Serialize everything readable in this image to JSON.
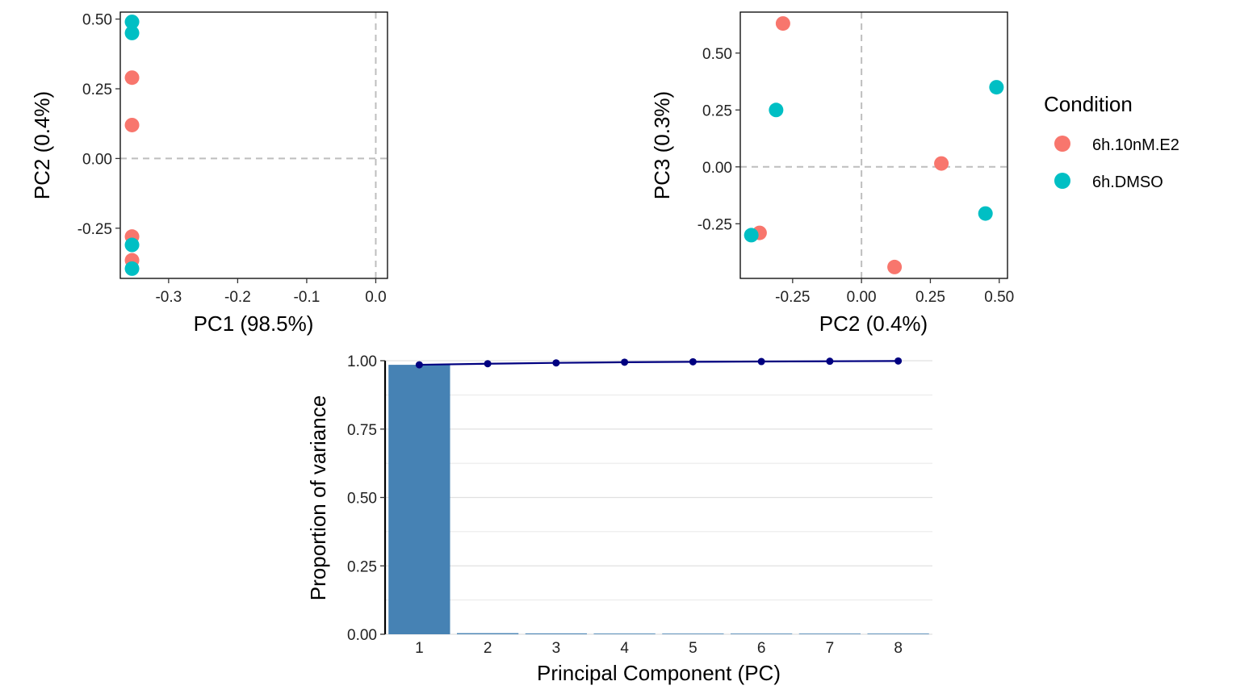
{
  "chart_data": [
    {
      "type": "scatter",
      "xlabel": "PC1 (98.5%)",
      "ylabel": "PC2 (0.4%)",
      "xlim": [
        -0.37,
        0.017
      ],
      "ylim": [
        -0.43,
        0.525
      ],
      "xticks": [
        -0.3,
        -0.2,
        -0.1,
        0.0
      ],
      "xtick_labels": [
        "-0.3",
        "-0.2",
        "-0.1",
        "0.0"
      ],
      "yticks": [
        -0.25,
        0.0,
        0.25,
        0.5
      ],
      "ytick_labels": [
        "-0.25",
        "0.00",
        "0.25",
        "0.50"
      ],
      "ref_lines": {
        "x": 0,
        "y": 0
      },
      "points": [
        {
          "x": -0.353,
          "y": 0.49,
          "group": "6h.DMSO"
        },
        {
          "x": -0.353,
          "y": 0.45,
          "group": "6h.DMSO"
        },
        {
          "x": -0.353,
          "y": 0.29,
          "group": "6h.10nM.E2"
        },
        {
          "x": -0.353,
          "y": 0.12,
          "group": "6h.10nM.E2"
        },
        {
          "x": -0.353,
          "y": -0.28,
          "group": "6h.10nM.E2"
        },
        {
          "x": -0.353,
          "y": -0.31,
          "group": "6h.DMSO"
        },
        {
          "x": -0.353,
          "y": -0.365,
          "group": "6h.10nM.E2"
        },
        {
          "x": -0.353,
          "y": -0.395,
          "group": "6h.DMSO"
        }
      ]
    },
    {
      "type": "scatter",
      "xlabel": "PC2 (0.4%)",
      "ylabel": "PC3 (0.3%)",
      "xlim": [
        -0.44,
        0.53
      ],
      "ylim": [
        -0.49,
        0.68
      ],
      "xticks": [
        -0.25,
        0.0,
        0.25,
        0.5
      ],
      "xtick_labels": [
        "-0.25",
        "0.00",
        "0.25",
        "0.50"
      ],
      "yticks": [
        -0.25,
        0.0,
        0.25,
        0.5
      ],
      "ytick_labels": [
        "-0.25",
        "0.00",
        "0.25",
        "0.50"
      ],
      "ref_lines": {
        "x": 0,
        "y": 0
      },
      "points": [
        {
          "x": -0.285,
          "y": 0.63,
          "group": "6h.10nM.E2"
        },
        {
          "x": 0.49,
          "y": 0.35,
          "group": "6h.DMSO"
        },
        {
          "x": -0.31,
          "y": 0.25,
          "group": "6h.DMSO"
        },
        {
          "x": 0.29,
          "y": 0.015,
          "group": "6h.10nM.E2"
        },
        {
          "x": 0.45,
          "y": -0.205,
          "group": "6h.DMSO"
        },
        {
          "x": -0.37,
          "y": -0.29,
          "group": "6h.10nM.E2"
        },
        {
          "x": -0.4,
          "y": -0.3,
          "group": "6h.DMSO"
        },
        {
          "x": 0.12,
          "y": -0.44,
          "group": "6h.10nM.E2"
        }
      ]
    },
    {
      "type": "bar",
      "xlabel": "Principal Component (PC)",
      "ylabel": "Proportion of variance",
      "categories": [
        "1",
        "2",
        "3",
        "4",
        "5",
        "6",
        "7",
        "8"
      ],
      "values": [
        0.985,
        0.004,
        0.003,
        0.0025,
        0.0015,
        0.001,
        0.001,
        0.0005
      ],
      "cumulative": [
        0.985,
        0.989,
        0.992,
        0.9945,
        0.996,
        0.997,
        0.998,
        0.999
      ],
      "ylim": [
        0,
        1.0
      ],
      "yticks": [
        0,
        0.25,
        0.5,
        0.75,
        1.0
      ],
      "ytick_labels": [
        "0.00",
        "0.25",
        "0.50",
        "0.75",
        "1.00"
      ],
      "grid": true
    }
  ],
  "legend": {
    "title": "Condition",
    "items": [
      {
        "label": "6h.10nM.E2",
        "color": "#F8766D"
      },
      {
        "label": "6h.DMSO",
        "color": "#00BFC4"
      }
    ]
  },
  "colors": {
    "6h.10nM.E2": "#F8766D",
    "6h.DMSO": "#00BFC4",
    "bar": "#4682B4",
    "line": "#000080",
    "refline": "#BEBEBE",
    "grid": "#E0E0E0"
  }
}
